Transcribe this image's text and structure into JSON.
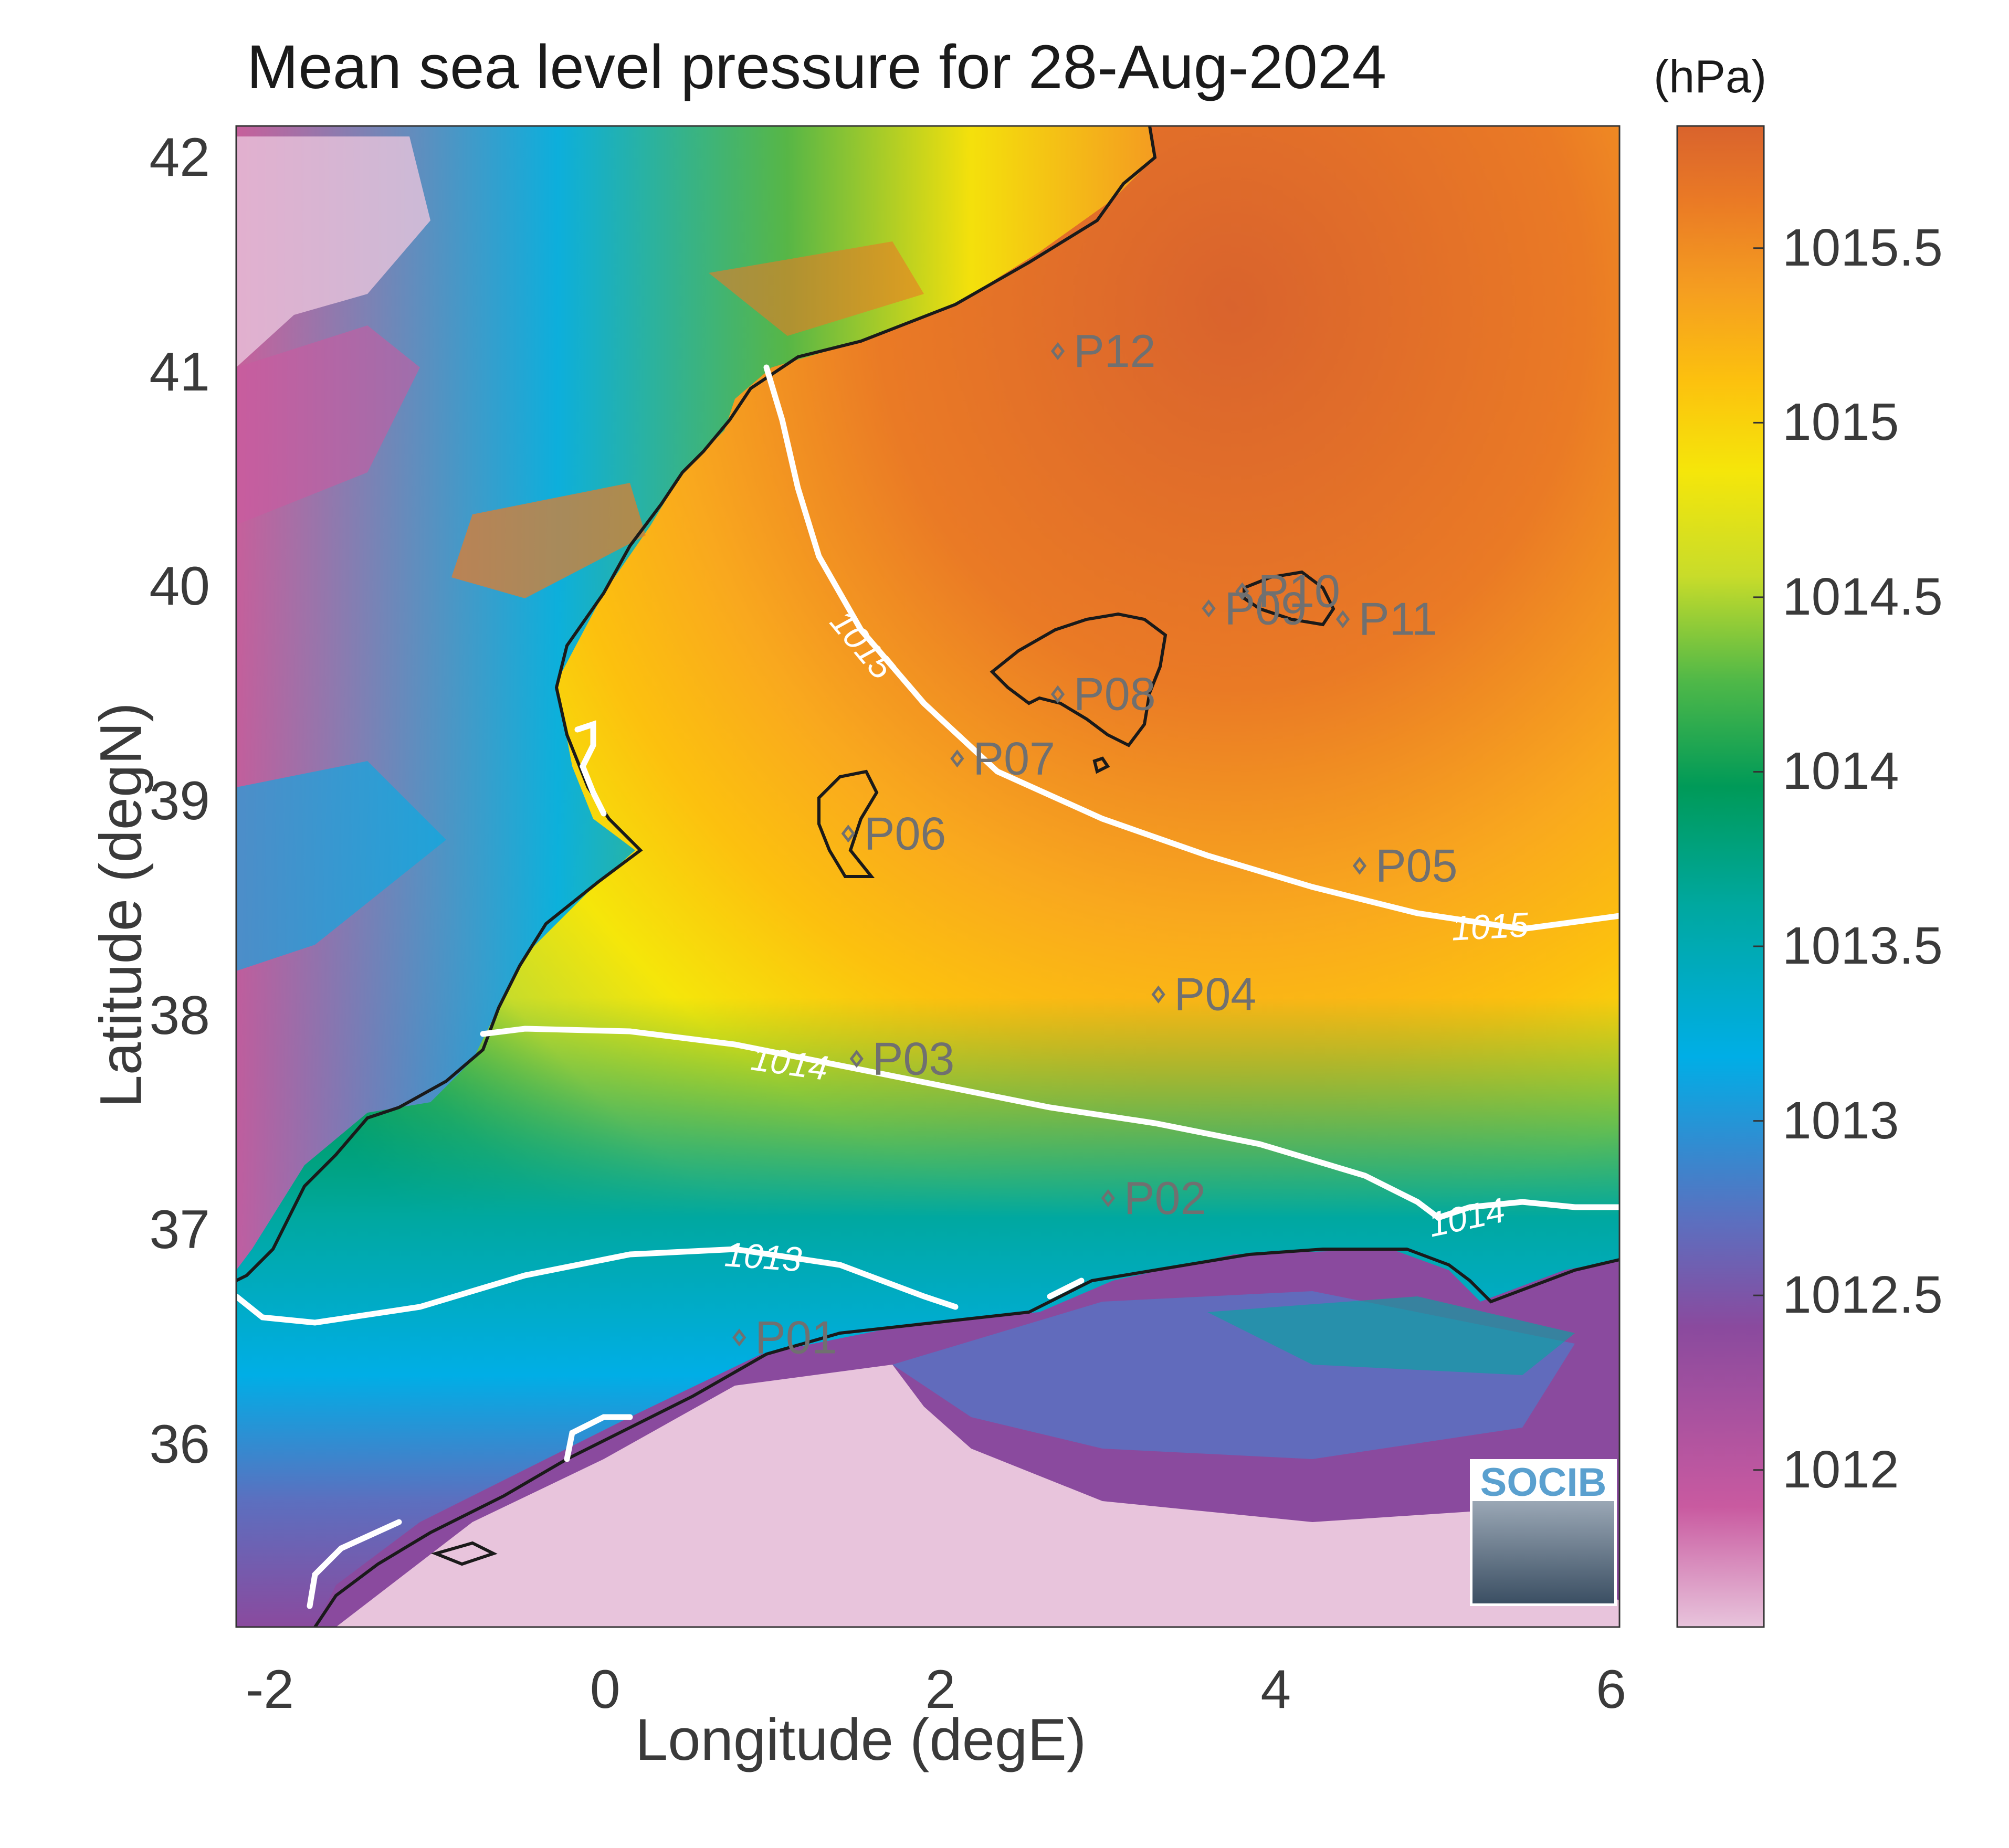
{
  "title": "Mean sea level pressure for 28-Aug-2024",
  "colorbar": {
    "unit": "(hPa)",
    "ticks": [
      "1015.5",
      "1015",
      "1014.5",
      "1014",
      "1013.5",
      "1013",
      "1012.5",
      "1012"
    ],
    "range": [
      1011.55,
      1015.85
    ],
    "colors": [
      "#e8c4dc",
      "#c95aa0",
      "#8a4a9e",
      "#5c6fbf",
      "#00aee6",
      "#00a8a0",
      "#009a58",
      "#4fb848",
      "#c8dc2a",
      "#f5e60a",
      "#fcc10e",
      "#f59e20",
      "#ea7a25",
      "#d9632d"
    ]
  },
  "axes": {
    "xlabel": "Longitude (degE)",
    "ylabel": "Latitude (degN)",
    "xticks": [
      "-2",
      "0",
      "2",
      "4",
      "6"
    ],
    "yticks": [
      "42",
      "41",
      "40",
      "39",
      "38",
      "37",
      "36"
    ],
    "xlim": [
      -2.2,
      6.05
    ],
    "ylim": [
      35.15,
      42.15
    ]
  },
  "contours": [
    {
      "level": "1013",
      "color": "#ffffff"
    },
    {
      "level": "1014",
      "color": "#ffffff"
    },
    {
      "level": "1015",
      "color": "#ffffff"
    }
  ],
  "points": [
    {
      "name": "P01",
      "lon": 0.8,
      "lat": 36.5
    },
    {
      "name": "P02",
      "lon": 3.0,
      "lat": 37.15
    },
    {
      "name": "P03",
      "lon": 1.5,
      "lat": 37.8
    },
    {
      "name": "P04",
      "lon": 3.3,
      "lat": 38.1
    },
    {
      "name": "P05",
      "lon": 4.5,
      "lat": 38.7
    },
    {
      "name": "P06",
      "lon": 1.45,
      "lat": 38.85
    },
    {
      "name": "P07",
      "lon": 2.1,
      "lat": 39.2
    },
    {
      "name": "P08",
      "lon": 2.7,
      "lat": 39.5
    },
    {
      "name": "P09",
      "lon": 3.6,
      "lat": 39.9
    },
    {
      "name": "P10",
      "lon": 3.8,
      "lat": 39.98
    },
    {
      "name": "P11",
      "lon": 4.4,
      "lat": 39.85
    },
    {
      "name": "P12",
      "lon": 2.7,
      "lat": 41.1
    }
  ],
  "logo": {
    "text": "SOCIB"
  },
  "chart_data": {
    "type": "heatmap",
    "title": "Mean sea level pressure for 28-Aug-2024",
    "xlabel": "Longitude (degE)",
    "ylabel": "Latitude (degN)",
    "colorbar_label": "(hPa)",
    "contour_levels": [
      1013,
      1014,
      1015
    ],
    "value_range": [
      1011.55,
      1015.85
    ]
  }
}
